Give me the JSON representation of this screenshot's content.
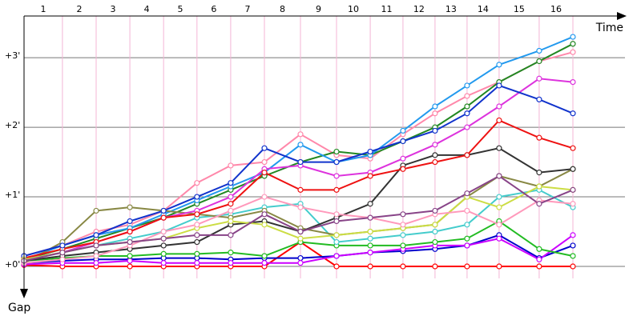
{
  "chart_data": {
    "type": "line",
    "x_label": "Time",
    "y_label": "Gap",
    "x": [
      0,
      1.15,
      2.16,
      3.17,
      4.18,
      5.18,
      6.19,
      7.2,
      8.28,
      9.36,
      10.37,
      11.35,
      12.31,
      13.27,
      14.23,
      15.43,
      16.44
    ],
    "xlim": [
      0,
      18
    ],
    "xticks": [
      {
        "value": 1.15,
        "label": "1"
      },
      {
        "value": 2.16,
        "label": "2"
      },
      {
        "value": 3.17,
        "label": "3"
      },
      {
        "value": 4.18,
        "label": "4"
      },
      {
        "value": 5.18,
        "label": "5"
      },
      {
        "value": 6.19,
        "label": "6"
      },
      {
        "value": 7.2,
        "label": "7"
      },
      {
        "value": 8.28,
        "label": "8"
      },
      {
        "value": 9.36,
        "label": "9"
      },
      {
        "value": 10.37,
        "label": "10"
      },
      {
        "value": 11.35,
        "label": "11"
      },
      {
        "value": 12.31,
        "label": "12"
      },
      {
        "value": 13.27,
        "label": "13"
      },
      {
        "value": 14.23,
        "label": "14"
      },
      {
        "value": 15.43,
        "label": "15"
      },
      {
        "value": 16.44,
        "label": "16"
      }
    ],
    "ylim": [
      -0.46,
      3.6
    ],
    "yticks": [
      {
        "value": 0,
        "label": "+0'"
      },
      {
        "value": 1,
        "label": "+1'"
      },
      {
        "value": 2,
        "label": "+2'"
      },
      {
        "value": 3,
        "label": "+3'"
      }
    ],
    "grid": true,
    "series": [
      {
        "color": "#ff0000",
        "values": [
          0.02,
          0,
          0,
          0,
          0,
          0,
          0,
          0,
          0.35,
          0,
          0,
          0,
          0,
          0,
          0,
          0,
          0
        ]
      },
      {
        "color": "#0000cc",
        "values": [
          0.05,
          0.08,
          0.1,
          0.1,
          0.12,
          0.12,
          0.1,
          0.12,
          0.12,
          0.15,
          0.2,
          0.22,
          0.25,
          0.3,
          0.45,
          0.12,
          0.3
        ]
      },
      {
        "color": "#cc00ff",
        "values": [
          0.03,
          0.05,
          0.05,
          0.08,
          0.05,
          0.05,
          0.05,
          0.05,
          0.05,
          0.15,
          0.2,
          0.25,
          0.3,
          0.3,
          0.4,
          0.1,
          0.45
        ]
      },
      {
        "color": "#22bb22",
        "values": [
          0.08,
          0.12,
          0.15,
          0.15,
          0.18,
          0.18,
          0.2,
          0.15,
          0.35,
          0.3,
          0.3,
          0.3,
          0.35,
          0.4,
          0.65,
          0.25,
          0.15
        ]
      },
      {
        "color": "#44cccc",
        "values": [
          0.1,
          0.2,
          0.3,
          0.4,
          0.5,
          0.7,
          0.75,
          0.85,
          0.9,
          0.35,
          0.4,
          0.45,
          0.5,
          0.6,
          1.0,
          1.1,
          0.85
        ]
      },
      {
        "color": "#ff88aa",
        "values": [
          0.15,
          0.3,
          0.5,
          0.6,
          0.8,
          1.2,
          1.45,
          1.5,
          1.9,
          1.6,
          1.55,
          1.9,
          2.2,
          2.45,
          2.65,
          2.95,
          3.08
        ]
      },
      {
        "color": "#228822",
        "values": [
          0.1,
          0.25,
          0.4,
          0.55,
          0.7,
          0.9,
          1.1,
          1.3,
          1.5,
          1.65,
          1.6,
          1.8,
          2.0,
          2.3,
          2.65,
          2.95,
          3.2
        ]
      },
      {
        "color": "#2299ee",
        "values": [
          0.1,
          0.3,
          0.45,
          0.55,
          0.75,
          0.95,
          1.15,
          1.35,
          1.75,
          1.5,
          1.6,
          1.95,
          2.3,
          2.6,
          2.9,
          3.1,
          3.3
        ]
      },
      {
        "color": "#888844",
        "values": [
          0.05,
          0.35,
          0.8,
          0.85,
          0.8,
          0.75,
          0.7,
          0.8,
          0.55,
          0.45,
          0.5,
          0.55,
          0.6,
          1.0,
          1.3,
          1.15,
          1.4
        ]
      },
      {
        "color": "#333333",
        "values": [
          0.08,
          0.15,
          0.2,
          0.25,
          0.3,
          0.35,
          0.6,
          0.65,
          0.5,
          0.7,
          0.9,
          1.45,
          1.6,
          1.6,
          1.7,
          1.35,
          1.4
        ]
      },
      {
        "color": "#dd33dd",
        "values": [
          0.1,
          0.2,
          0.35,
          0.5,
          0.7,
          0.8,
          1.0,
          1.4,
          1.45,
          1.3,
          1.35,
          1.55,
          1.75,
          2.0,
          2.3,
          2.7,
          2.65
        ]
      },
      {
        "color": "#ee1111",
        "values": [
          0.12,
          0.25,
          0.35,
          0.5,
          0.7,
          0.75,
          0.9,
          1.35,
          1.1,
          1.1,
          1.3,
          1.4,
          1.5,
          1.6,
          2.1,
          1.85,
          1.7
        ]
      },
      {
        "color": "#1133cc",
        "values": [
          0.15,
          0.3,
          0.45,
          0.65,
          0.8,
          1.0,
          1.2,
          1.7,
          1.5,
          1.5,
          1.65,
          1.8,
          1.95,
          2.2,
          2.6,
          2.4,
          2.2
        ]
      },
      {
        "color": "#ccdd44",
        "values": [
          0.1,
          0.2,
          0.3,
          0.35,
          0.4,
          0.55,
          0.65,
          0.6,
          0.4,
          0.45,
          0.5,
          0.55,
          0.6,
          1.0,
          0.85,
          1.15,
          1.1
        ]
      },
      {
        "color": "#ff99bb",
        "values": [
          0.05,
          0.1,
          0.15,
          0.3,
          0.5,
          0.6,
          0.8,
          1.0,
          0.85,
          0.75,
          0.7,
          0.6,
          0.75,
          0.8,
          0.6,
          0.95,
          0.9
        ]
      },
      {
        "color": "#884488",
        "values": [
          0.08,
          0.2,
          0.3,
          0.35,
          0.4,
          0.45,
          0.45,
          0.75,
          0.5,
          0.65,
          0.7,
          0.75,
          0.8,
          1.05,
          1.3,
          0.9,
          1.1
        ]
      }
    ]
  }
}
